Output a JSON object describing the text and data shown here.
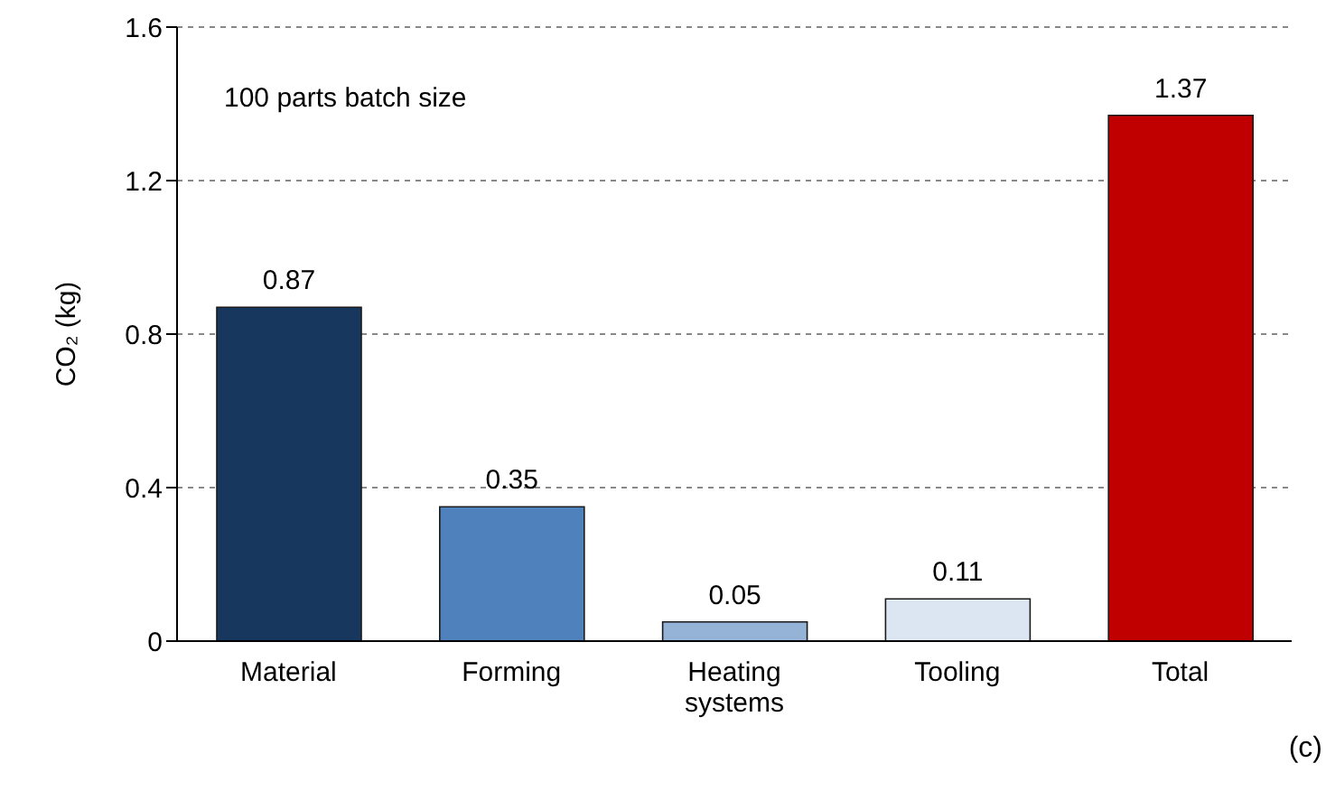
{
  "chart_data": {
    "type": "bar",
    "ylabel": "CO₂ (kg)",
    "categories": [
      "Material",
      "Forming",
      "Heating systems",
      "Tooling",
      "Total"
    ],
    "values": [
      0.87,
      0.35,
      0.05,
      0.11,
      1.37
    ],
    "colors": [
      "#17375e",
      "#4f81bd",
      "#95b3d7",
      "#dce6f2",
      "#c00000"
    ],
    "ylim": [
      0,
      1.6
    ],
    "yticks": [
      0,
      0.4,
      0.8,
      1.2,
      1.6
    ],
    "grid": "y",
    "data_labels": true,
    "annotations": [
      "100 parts batch size",
      "(c)"
    ]
  }
}
